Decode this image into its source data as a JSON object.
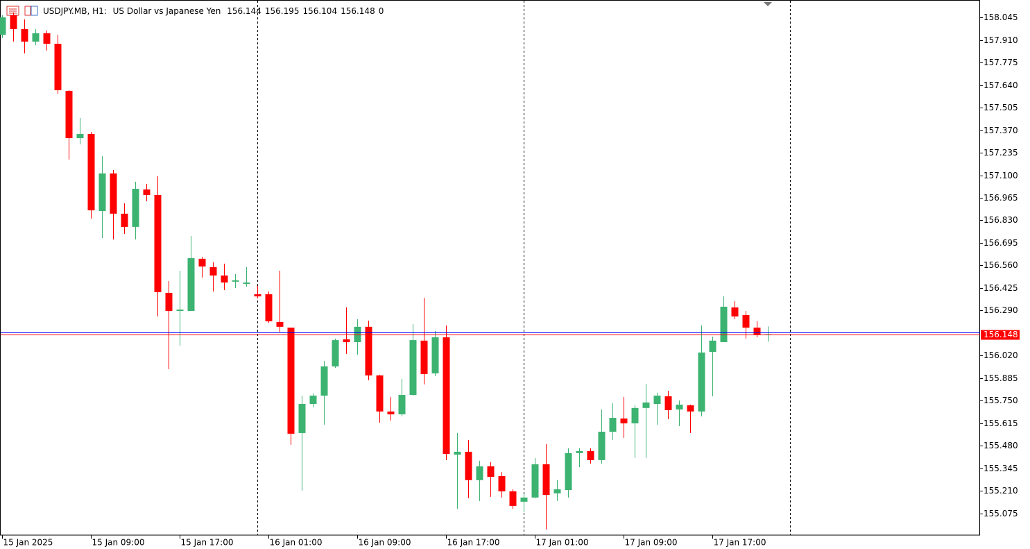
{
  "header": {
    "symbol": "USDJPY.MB, H1:",
    "description": "US Dollar vs Japanese Yen",
    "volume": 0
  },
  "chart_data": {
    "type": "candlestick",
    "categories": [
      "15 Jan 2025",
      null,
      null,
      null,
      null,
      null,
      null,
      null,
      "15 Jan 09:00",
      null,
      null,
      null,
      null,
      null,
      null,
      null,
      "15 Jan 17:00",
      null,
      null,
      null,
      null,
      null,
      null,
      null,
      "16 Jan 01:00",
      null,
      null,
      null,
      null,
      null,
      null,
      null,
      "16 Jan 09:00",
      null,
      null,
      null,
      null,
      null,
      null,
      null,
      "16 Jan 17:00",
      null,
      null,
      null,
      null,
      null,
      null,
      null,
      "17 Jan 01:00",
      null,
      null,
      null,
      null,
      null,
      null,
      null,
      "17 Jan 09:00",
      null,
      null,
      null,
      null,
      null,
      null,
      null,
      "17 Jan 17:00",
      null,
      null,
      null,
      null,
      null
    ],
    "open": [
      157.941,
      158.058,
      157.975,
      157.9,
      157.95,
      157.887,
      157.605,
      157.322,
      157.347,
      156.886,
      157.111,
      156.87,
      156.791,
      157.015,
      156.982,
      156.396,
      156.288,
      156.288,
      156.6,
      156.55,
      156.5,
      156.463,
      156.45,
      156.388,
      156.388,
      156.222,
      156.188,
      155.557,
      155.731,
      155.781,
      155.956,
      156.118,
      156.101,
      156.193,
      155.902,
      155.686,
      155.669,
      155.785,
      156.11,
      155.914,
      156.13,
      155.428,
      155.445,
      155.275,
      155.358,
      155.299,
      155.208,
      155.146,
      155.171,
      155.37,
      155.196,
      155.216,
      155.437,
      155.449,
      155.395,
      155.565,
      155.644,
      155.615,
      155.707,
      155.731,
      155.777,
      155.698,
      155.723,
      155.686,
      156.043,
      156.101,
      156.309,
      156.263,
      156.188,
      156.144
    ],
    "high": [
      158.058,
      158.074,
      158.033,
      157.975,
      157.966,
      157.941,
      157.609,
      157.443,
      157.36,
      157.214,
      157.131,
      156.932,
      157.061,
      157.048,
      157.094,
      156.467,
      156.529,
      156.737,
      156.612,
      156.579,
      156.571,
      156.508,
      156.55,
      156.438,
      156.404,
      156.529,
      156.188,
      155.781,
      155.794,
      155.989,
      156.122,
      156.309,
      156.238,
      156.23,
      155.906,
      155.773,
      155.881,
      156.209,
      156.367,
      156.168,
      156.201,
      155.557,
      155.515,
      155.391,
      155.383,
      155.324,
      155.22,
      155.191,
      155.407,
      155.49,
      155.275,
      155.466,
      155.466,
      155.466,
      155.698,
      155.736,
      155.773,
      155.723,
      155.852,
      155.798,
      155.81,
      155.752,
      155.727,
      156.201,
      156.134,
      156.375,
      156.346,
      156.288,
      156.226,
      156.195
    ],
    "low": [
      157.921,
      157.9,
      157.829,
      157.879,
      157.846,
      157.588,
      157.194,
      157.285,
      156.84,
      156.724,
      156.716,
      156.749,
      156.716,
      156.944,
      156.255,
      155.939,
      156.08,
      156.288,
      156.488,
      156.404,
      156.413,
      156.425,
      156.433,
      156.363,
      156.217,
      156.163,
      155.486,
      155.212,
      155.711,
      155.607,
      155.947,
      156.031,
      156.026,
      155.873,
      155.619,
      155.632,
      155.657,
      155.781,
      155.848,
      155.898,
      155.395,
      155.104,
      155.167,
      155.15,
      155.175,
      155.171,
      155.104,
      155.083,
      155.167,
      154.98,
      155.15,
      155.171,
      155.353,
      155.374,
      155.374,
      155.515,
      155.528,
      155.408,
      155.408,
      155.607,
      155.64,
      155.599,
      155.557,
      155.657,
      155.777,
      156.101,
      156.238,
      156.122,
      156.13,
      156.104
    ],
    "close": [
      158.045,
      157.975,
      157.9,
      157.95,
      157.887,
      157.609,
      157.322,
      157.347,
      156.89,
      157.111,
      156.87,
      156.791,
      157.019,
      156.982,
      156.4,
      156.288,
      156.296,
      156.604,
      156.554,
      156.5,
      156.458,
      156.471,
      156.458,
      156.375,
      156.226,
      156.193,
      155.553,
      155.731,
      155.781,
      155.956,
      156.113,
      156.101,
      156.193,
      155.902,
      155.686,
      155.669,
      155.785,
      156.113,
      155.91,
      156.13,
      155.432,
      155.445,
      155.275,
      155.358,
      155.295,
      155.208,
      155.121,
      155.171,
      155.37,
      155.187,
      155.22,
      155.437,
      155.449,
      155.395,
      155.565,
      155.648,
      155.615,
      155.707,
      155.74,
      155.781,
      155.694,
      155.727,
      155.686,
      156.039,
      156.11,
      156.313,
      156.255,
      156.188,
      156.143,
      156.148
    ],
    "up_color": "#3cb371",
    "down_color": "#ff0000",
    "ask": 156.158,
    "ask_color": "#0000ff",
    "ylim": [
      154.946,
      158.149
    ],
    "yticks": [
      158.045,
      {
        "value": 157.91,
        "label": "157.910"
      },
      157.775,
      {
        "value": 157.64,
        "label": "157.640"
      },
      157.505,
      {
        "value": 157.37,
        "label": "157.370"
      },
      157.235,
      {
        "value": 157.1,
        "label": "157.100"
      },
      156.965,
      {
        "value": 156.83,
        "label": "156.830"
      },
      156.695,
      {
        "value": 156.56,
        "label": "156.560"
      },
      156.425,
      {
        "value": 156.29,
        "label": "156.290"
      },
      {
        "value": 156.02,
        "label": "156.020"
      },
      155.885,
      {
        "value": 155.75,
        "label": "155.750"
      },
      155.615,
      {
        "value": 155.48,
        "label": "155.480"
      },
      155.345,
      {
        "value": 155.21,
        "label": "155.210"
      },
      155.075
    ]
  }
}
